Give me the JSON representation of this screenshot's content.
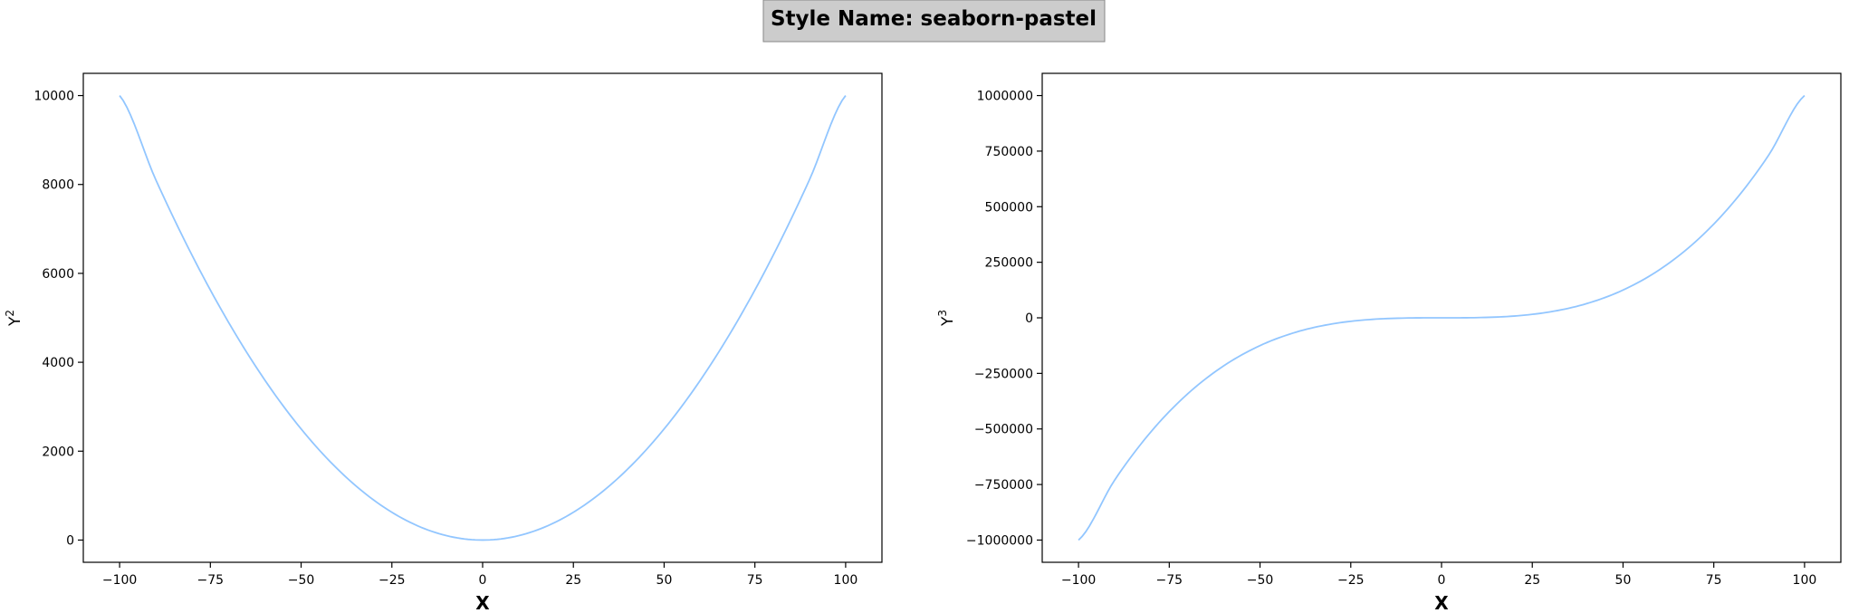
{
  "suptitle": "Style Name: seaborn-pastel",
  "colors": {
    "line": "#92c6ff",
    "title_box": "#cccccc",
    "title_box_edge": "#888888"
  },
  "chart_data": [
    {
      "type": "line",
      "xlabel": "X",
      "ylabel_base": "Y",
      "ylabel_exp": "2",
      "xlim": [
        -110,
        110
      ],
      "ylim": [
        -500,
        10500
      ],
      "xticks": [
        -100,
        -75,
        -50,
        -25,
        0,
        25,
        50,
        75,
        100
      ],
      "xtick_labels": [
        "−100",
        "−75",
        "−50",
        "−25",
        "0",
        "25",
        "50",
        "75",
        "100"
      ],
      "yticks": [
        0,
        2000,
        4000,
        6000,
        8000,
        10000
      ],
      "ytick_labels": [
        "0",
        "2000",
        "4000",
        "6000",
        "8000",
        "10000"
      ],
      "grid": false,
      "series": [
        {
          "x": [
            -100,
            -90,
            -80,
            -70,
            -60,
            -50,
            -40,
            -30,
            -20,
            -10,
            0,
            10,
            20,
            30,
            40,
            50,
            60,
            70,
            80,
            90,
            100
          ],
          "y": [
            10000,
            8100,
            6400,
            4900,
            3600,
            2500,
            1600,
            900,
            400,
            100,
            0,
            100,
            400,
            900,
            1600,
            2500,
            3600,
            4900,
            6400,
            8100,
            10000
          ]
        }
      ]
    },
    {
      "type": "line",
      "xlabel": "X",
      "ylabel_base": "Y",
      "ylabel_exp": "3",
      "xlim": [
        -110,
        110
      ],
      "ylim": [
        -1100000,
        1100000
      ],
      "xticks": [
        -100,
        -75,
        -50,
        -25,
        0,
        25,
        50,
        75,
        100
      ],
      "xtick_labels": [
        "−100",
        "−75",
        "−50",
        "−25",
        "0",
        "25",
        "50",
        "75",
        "100"
      ],
      "yticks": [
        -1000000,
        -750000,
        -500000,
        -250000,
        0,
        250000,
        500000,
        750000,
        1000000
      ],
      "ytick_labels": [
        "−1000000",
        "−750000",
        "−500000",
        "−250000",
        "0",
        "250000",
        "500000",
        "750000",
        "1000000"
      ],
      "grid": false,
      "series": [
        {
          "x": [
            -100,
            -90,
            -80,
            -70,
            -60,
            -50,
            -40,
            -30,
            -20,
            -10,
            0,
            10,
            20,
            30,
            40,
            50,
            60,
            70,
            80,
            90,
            100
          ],
          "y": [
            -1000000,
            -729000,
            -512000,
            -343000,
            -216000,
            -125000,
            -64000,
            -27000,
            -8000,
            -1000,
            0,
            1000,
            8000,
            27000,
            64000,
            125000,
            216000,
            343000,
            512000,
            729000,
            1000000
          ]
        }
      ]
    }
  ]
}
